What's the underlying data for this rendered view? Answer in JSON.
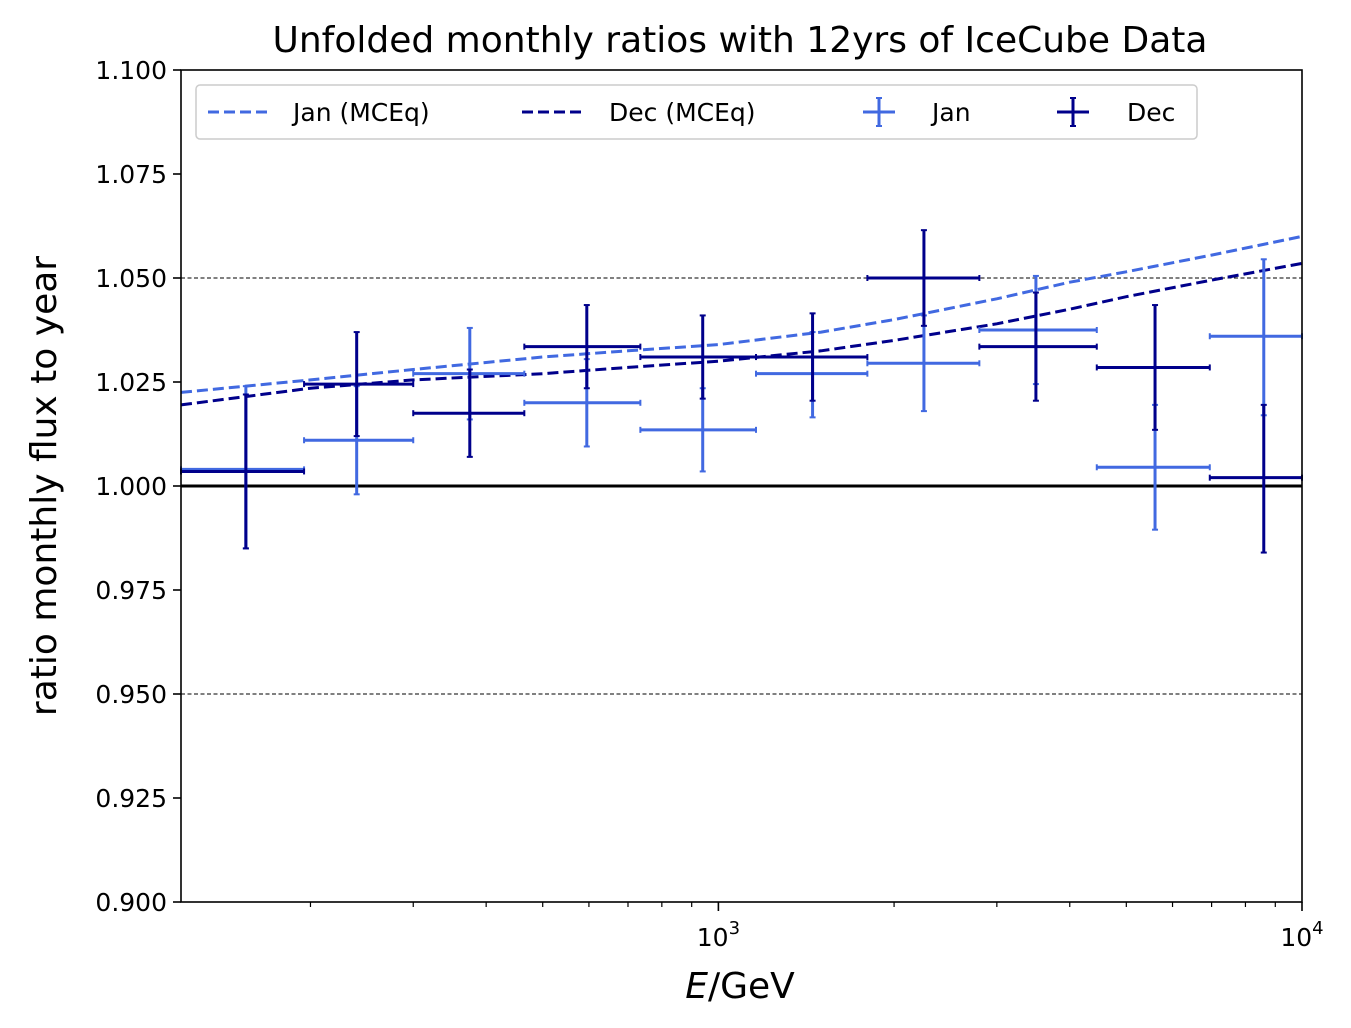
{
  "chart_data": {
    "type": "scatter",
    "title": "Unfolded monthly ratios with 12yrs of IceCube Data",
    "xlabel_italic": "E",
    "xlabel_rest": "/GeV",
    "ylabel": "ratio monthly flux to year",
    "xscale": "log",
    "xlim": [
      120,
      10000
    ],
    "ylim": [
      0.9,
      1.1
    ],
    "x_major_ticks": [
      {
        "value": 1000,
        "base": "10",
        "exp": "3"
      },
      {
        "value": 10000,
        "base": "10",
        "exp": "4"
      }
    ],
    "x_minor_ticks": [
      200,
      300,
      400,
      500,
      600,
      700,
      800,
      900,
      2000,
      3000,
      4000,
      5000,
      6000,
      7000,
      8000,
      9000
    ],
    "y_ticks": [
      {
        "value": 0.9,
        "label": "0.900"
      },
      {
        "value": 0.925,
        "label": "0.925"
      },
      {
        "value": 0.95,
        "label": "0.950"
      },
      {
        "value": 0.975,
        "label": "0.975"
      },
      {
        "value": 1.0,
        "label": "1.000"
      },
      {
        "value": 1.025,
        "label": "1.025"
      },
      {
        "value": 1.05,
        "label": "1.050"
      },
      {
        "value": 1.075,
        "label": "1.075"
      },
      {
        "value": 1.1,
        "label": "1.100"
      }
    ],
    "reference_lines": [
      {
        "y": 1.0,
        "style": "solid"
      },
      {
        "y": 1.05,
        "style": "dashed"
      },
      {
        "y": 0.95,
        "style": "dashed"
      }
    ],
    "legend": {
      "placement": "top-left",
      "entries": [
        {
          "label": "Jan (MCEq)",
          "kind": "line",
          "color": "#4169e1"
        },
        {
          "label": "Dec (MCEq)",
          "kind": "line",
          "color": "#00008b"
        },
        {
          "label": "Jan",
          "kind": "errorbar",
          "color": "#4169e1"
        },
        {
          "label": "Dec",
          "kind": "errorbar",
          "color": "#00008b"
        }
      ]
    },
    "curves": [
      {
        "label": "Jan (MCEq)",
        "color": "#4169e1",
        "x": [
          120,
          200,
          300,
          500,
          700,
          1000,
          1500,
          2000,
          3000,
          4000,
          5000,
          7000,
          10000
        ],
        "y": [
          1.0225,
          1.0255,
          1.028,
          1.031,
          1.0325,
          1.034,
          1.037,
          1.04,
          1.045,
          1.049,
          1.0515,
          1.0555,
          1.06
        ]
      },
      {
        "label": "Dec (MCEq)",
        "color": "#00008b",
        "x": [
          120,
          200,
          300,
          500,
          700,
          1000,
          1500,
          2000,
          3000,
          4000,
          5000,
          7000,
          10000
        ],
        "y": [
          1.0195,
          1.0235,
          1.0255,
          1.027,
          1.0285,
          1.03,
          1.0325,
          1.035,
          1.039,
          1.0425,
          1.0455,
          1.0495,
          1.0535
        ]
      }
    ],
    "series": [
      {
        "label": "Jan",
        "color": "#4169e1",
        "points": [
          {
            "x": 155,
            "xlo": 120,
            "xhi": 195,
            "y": 1.004,
            "ylo": 0.985,
            "yhi": 1.024
          },
          {
            "x": 240,
            "xlo": 195,
            "xhi": 300,
            "y": 1.011,
            "ylo": 0.998,
            "yhi": 1.024
          },
          {
            "x": 375,
            "xlo": 300,
            "xhi": 465,
            "y": 1.027,
            "ylo": 1.016,
            "yhi": 1.038
          },
          {
            "x": 595,
            "xlo": 465,
            "xhi": 735,
            "y": 1.02,
            "ylo": 1.0095,
            "yhi": 1.0305
          },
          {
            "x": 940,
            "xlo": 735,
            "xhi": 1160,
            "y": 1.0135,
            "ylo": 1.0035,
            "yhi": 1.0235
          },
          {
            "x": 1450,
            "xlo": 1160,
            "xhi": 1800,
            "y": 1.027,
            "ylo": 1.0165,
            "yhi": 1.037
          },
          {
            "x": 2250,
            "xlo": 1800,
            "xhi": 2800,
            "y": 1.0295,
            "ylo": 1.018,
            "yhi": 1.041
          },
          {
            "x": 3500,
            "xlo": 2800,
            "xhi": 4450,
            "y": 1.0375,
            "ylo": 1.0245,
            "yhi": 1.0505
          },
          {
            "x": 5600,
            "xlo": 4450,
            "xhi": 6950,
            "y": 1.0045,
            "ylo": 0.9895,
            "yhi": 1.0195
          },
          {
            "x": 8600,
            "xlo": 6950,
            "xhi": 10000,
            "y": 1.036,
            "ylo": 1.017,
            "yhi": 1.0545
          }
        ]
      },
      {
        "label": "Dec",
        "color": "#00008b",
        "points": [
          {
            "x": 155,
            "xlo": 120,
            "xhi": 195,
            "y": 1.0035,
            "ylo": 0.985,
            "yhi": 1.022
          },
          {
            "x": 240,
            "xlo": 195,
            "xhi": 300,
            "y": 1.0245,
            "ylo": 1.012,
            "yhi": 1.037
          },
          {
            "x": 375,
            "xlo": 300,
            "xhi": 465,
            "y": 1.0175,
            "ylo": 1.007,
            "yhi": 1.028
          },
          {
            "x": 595,
            "xlo": 465,
            "xhi": 735,
            "y": 1.0335,
            "ylo": 1.0235,
            "yhi": 1.0435
          },
          {
            "x": 940,
            "xlo": 735,
            "xhi": 1160,
            "y": 1.031,
            "ylo": 1.021,
            "yhi": 1.041
          },
          {
            "x": 1450,
            "xlo": 1160,
            "xhi": 1800,
            "y": 1.031,
            "ylo": 1.0205,
            "yhi": 1.0415
          },
          {
            "x": 2250,
            "xlo": 1800,
            "xhi": 2800,
            "y": 1.05,
            "ylo": 1.0385,
            "yhi": 1.0615
          },
          {
            "x": 3500,
            "xlo": 2800,
            "xhi": 4450,
            "y": 1.0335,
            "ylo": 1.0205,
            "yhi": 1.0465
          },
          {
            "x": 5600,
            "xlo": 4450,
            "xhi": 6950,
            "y": 1.0285,
            "ylo": 1.0135,
            "yhi": 1.0435
          },
          {
            "x": 8600,
            "xlo": 6950,
            "xhi": 10000,
            "y": 1.002,
            "ylo": 0.984,
            "yhi": 1.0195
          }
        ]
      }
    ]
  }
}
